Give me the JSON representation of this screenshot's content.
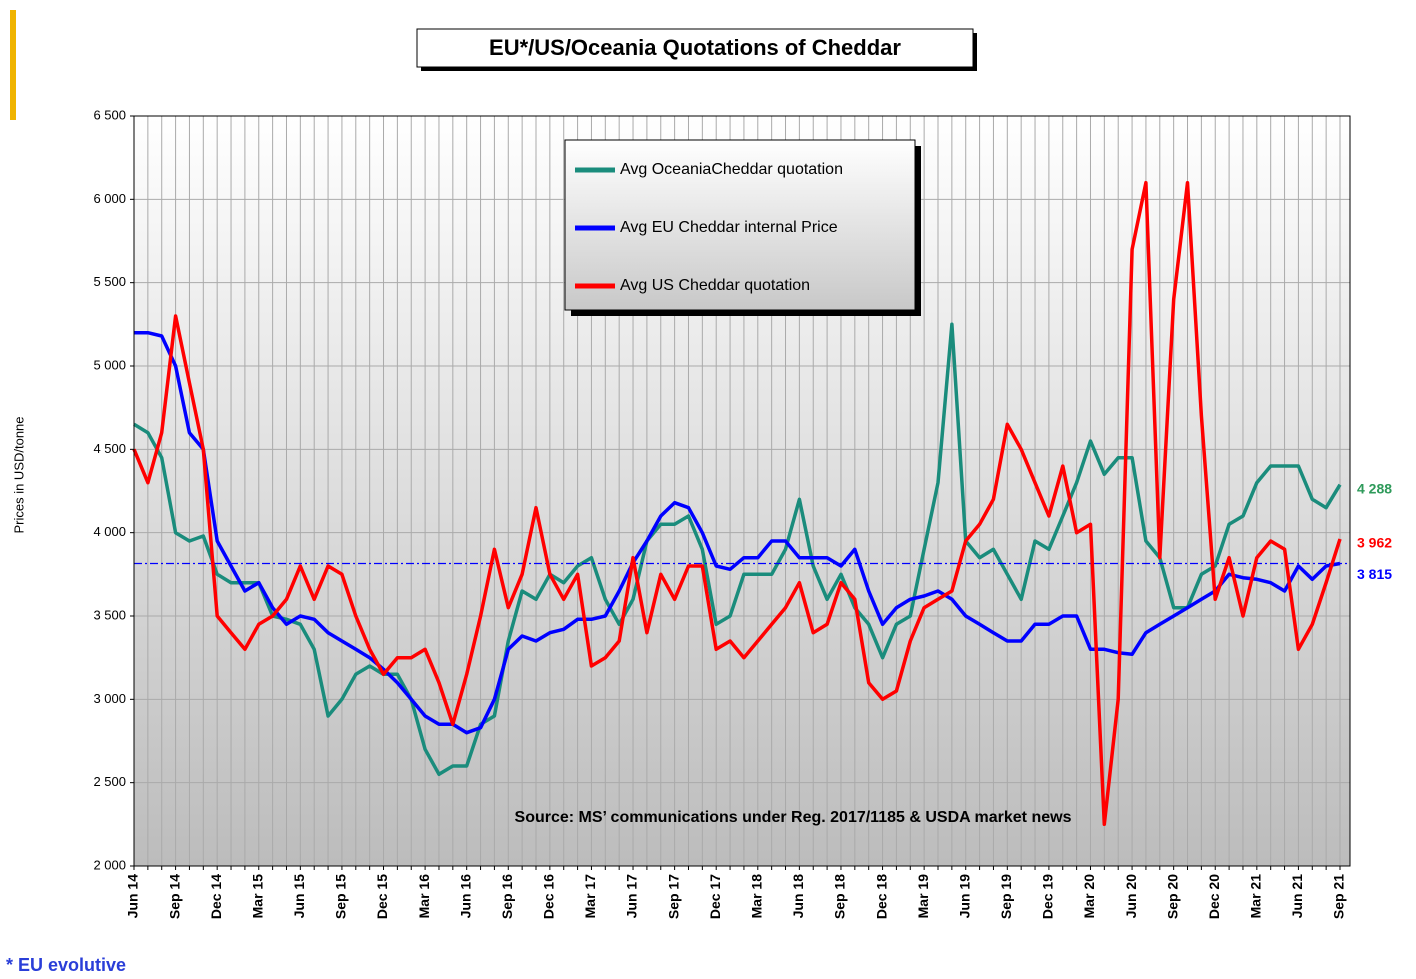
{
  "chart_data": {
    "type": "line",
    "title": "EU*/US/Oceania Quotations of Cheddar",
    "y_label": "Prices in USD/tonne",
    "annotation": "Source: MS’ communications under Reg. 2017/1185  & USDA market news",
    "footnote": "* EU evolutive",
    "categories": [
      "Jun 14",
      null,
      null,
      "Sep 14",
      null,
      null,
      "Dec 14",
      null,
      null,
      "Mar 15",
      null,
      null,
      "Jun 15",
      null,
      null,
      "Sep 15",
      null,
      null,
      "Dec 15",
      null,
      null,
      "Mar 16",
      null,
      null,
      "Jun 16",
      null,
      null,
      "Sep 16",
      null,
      null,
      "Dec 16",
      null,
      null,
      "Mar 17",
      null,
      null,
      "Jun 17",
      null,
      null,
      "Sep 17",
      null,
      null,
      "Dec 17",
      null,
      null,
      "Mar 18",
      null,
      null,
      "Jun 18",
      null,
      null,
      "Sep 18",
      null,
      null,
      "Dec 18",
      null,
      null,
      "Mar 19",
      null,
      null,
      "Jun 19",
      null,
      null,
      "Sep 19",
      null,
      null,
      "Dec 19",
      null,
      null,
      "Mar 20",
      null,
      null,
      "Jun 20",
      null,
      null,
      "Sep 20",
      null,
      null,
      "Dec 20",
      null,
      null,
      "Mar 21",
      null,
      null,
      "Jun 21",
      null,
      null,
      "Sep 21"
    ],
    "series": [
      {
        "name": "Avg OceaniaCheddar quotation",
        "color": "#1a8c7c",
        "label_color": "#2e9a5a",
        "last_label": "4 288",
        "values": [
          4650,
          4600,
          4450,
          4000,
          3950,
          3980,
          3750,
          3700,
          3700,
          3700,
          3500,
          3480,
          3450,
          3300,
          2900,
          3000,
          3150,
          3200,
          3150,
          3150,
          3000,
          2700,
          2550,
          2600,
          2600,
          2850,
          2900,
          3350,
          3650,
          3600,
          3750,
          3700,
          3800,
          3850,
          3600,
          3450,
          3600,
          3950,
          4050,
          4050,
          4100,
          3900,
          3450,
          3500,
          3750,
          3750,
          3750,
          3900,
          4200,
          3800,
          3600,
          3750,
          3550,
          3450,
          3250,
          3450,
          3500,
          3900,
          4300,
          5250,
          3950,
          3850,
          3900,
          3750,
          3600,
          3950,
          3900,
          4100,
          4300,
          4550,
          4350,
          4450,
          4450,
          3950,
          3850,
          3550,
          3550,
          3750,
          3800,
          4050,
          4100,
          4300,
          4400,
          4400,
          4400,
          4200,
          4150,
          4288
        ]
      },
      {
        "name": "Avg EU Cheddar internal Price",
        "color": "#0000ff",
        "label_color": "#0000ff",
        "last_label": "3 815",
        "reference_line": true,
        "values": [
          5200,
          5200,
          5180,
          5000,
          4600,
          4500,
          3950,
          3800,
          3650,
          3700,
          3550,
          3450,
          3500,
          3480,
          3400,
          3350,
          3300,
          3250,
          3180,
          3100,
          3000,
          2900,
          2850,
          2850,
          2800,
          2830,
          3000,
          3300,
          3380,
          3350,
          3400,
          3420,
          3480,
          3480,
          3500,
          3650,
          3820,
          3950,
          4100,
          4180,
          4150,
          4000,
          3800,
          3780,
          3850,
          3850,
          3950,
          3950,
          3850,
          3850,
          3850,
          3800,
          3900,
          3650,
          3450,
          3550,
          3600,
          3620,
          3650,
          3600,
          3500,
          3450,
          3400,
          3350,
          3350,
          3450,
          3450,
          3500,
          3500,
          3300,
          3300,
          3280,
          3270,
          3400,
          3450,
          3500,
          3550,
          3600,
          3650,
          3750,
          3730,
          3720,
          3700,
          3650,
          3800,
          3720,
          3800,
          3815
        ]
      },
      {
        "name": "Avg US Cheddar quotation",
        "color": "#ff0000",
        "label_color": "#ff0000",
        "last_label": "3 962",
        "values": [
          4500,
          4300,
          4600,
          5300,
          4900,
          4500,
          3500,
          3400,
          3300,
          3450,
          3500,
          3600,
          3800,
          3600,
          3800,
          3750,
          3500,
          3300,
          3150,
          3250,
          3250,
          3300,
          3100,
          2850,
          3150,
          3500,
          3900,
          3550,
          3750,
          4150,
          3750,
          3600,
          3750,
          3200,
          3250,
          3350,
          3850,
          3400,
          3750,
          3600,
          3800,
          3800,
          3300,
          3350,
          3250,
          3350,
          3450,
          3550,
          3700,
          3400,
          3450,
          3700,
          3600,
          3100,
          3000,
          3050,
          3350,
          3550,
          3600,
          3650,
          3950,
          4050,
          4200,
          4650,
          4500,
          4300,
          4100,
          4400,
          4000,
          4050,
          2250,
          3000,
          5700,
          6100,
          3850,
          5400,
          6100,
          4700,
          3600,
          3850,
          3500,
          3850,
          3950,
          3900,
          3300,
          3450,
          3700,
          3962
        ]
      }
    ],
    "ylim": [
      2000,
      6500
    ],
    "yticks": [
      {
        "value": 2000,
        "label": "2 000"
      },
      {
        "value": 2500,
        "label": "2 500"
      },
      {
        "value": 3000,
        "label": "3 000"
      },
      {
        "value": 3500,
        "label": "3 500"
      },
      {
        "value": 4000,
        "label": "4 000"
      },
      {
        "value": 4500,
        "label": "4 500"
      },
      {
        "value": 5000,
        "label": "5 000"
      },
      {
        "value": 5500,
        "label": "5 500"
      },
      {
        "value": 6000,
        "label": "6 000"
      },
      {
        "value": 6500,
        "label": "6 500"
      }
    ],
    "grid": true
  }
}
